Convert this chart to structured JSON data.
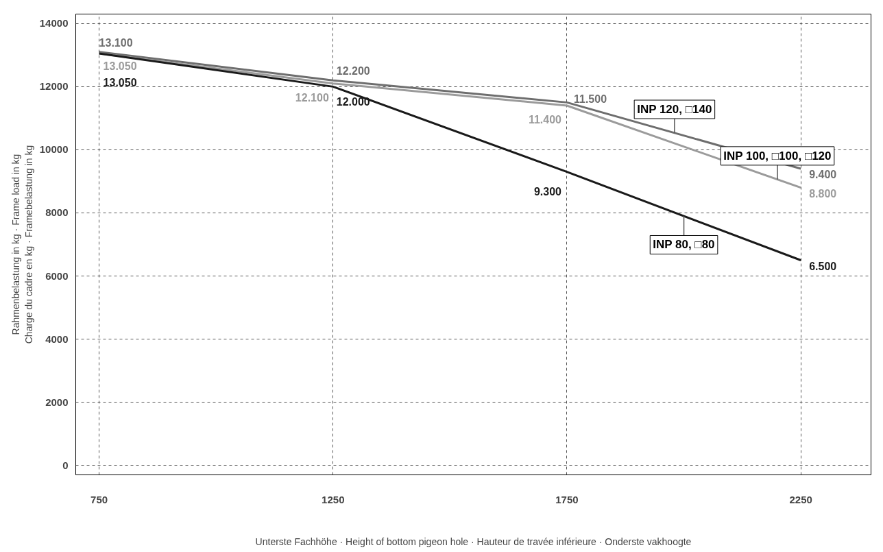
{
  "chart_data": {
    "type": "line",
    "xlabel": "Unterste Fachhöhe · Height of bottom pigeon hole · Hauteur de travée inférieure · Onderste vakhoogte",
    "ylabel": "Rahmenbelastung in kg · Frame load in kg\nCharge du cadre en kg · Framebelastung in kg",
    "x": [
      750,
      1250,
      1750,
      2250
    ],
    "series": [
      {
        "name": "INP 120, □140",
        "color": "#6e6e6e",
        "values": [
          13100,
          12200,
          11500,
          9400
        ],
        "value_labels": [
          "13.100",
          "12.200",
          "11.500",
          "9.400"
        ]
      },
      {
        "name": "INP 100, □100, □120",
        "color": "#9b9b9b",
        "values": [
          13050,
          12100,
          11400,
          8800
        ],
        "value_labels": [
          "13.050",
          "12.100",
          "11.400",
          "8.800"
        ]
      },
      {
        "name": "INP 80, □80",
        "color": "#1a1a1a",
        "values": [
          13050,
          12000,
          9300,
          6500
        ],
        "value_labels": [
          "13.050",
          "12.000",
          "9.300",
          "6.500"
        ]
      }
    ],
    "xlim": [
      700,
      2400
    ],
    "ylim": [
      -300,
      14300
    ],
    "xticks": [
      750,
      1250,
      1750,
      2250
    ],
    "yticks": [
      0,
      2000,
      4000,
      6000,
      8000,
      10000,
      12000,
      14000
    ],
    "grid": true,
    "line_style": "solid",
    "marker": "none",
    "legend": false
  }
}
